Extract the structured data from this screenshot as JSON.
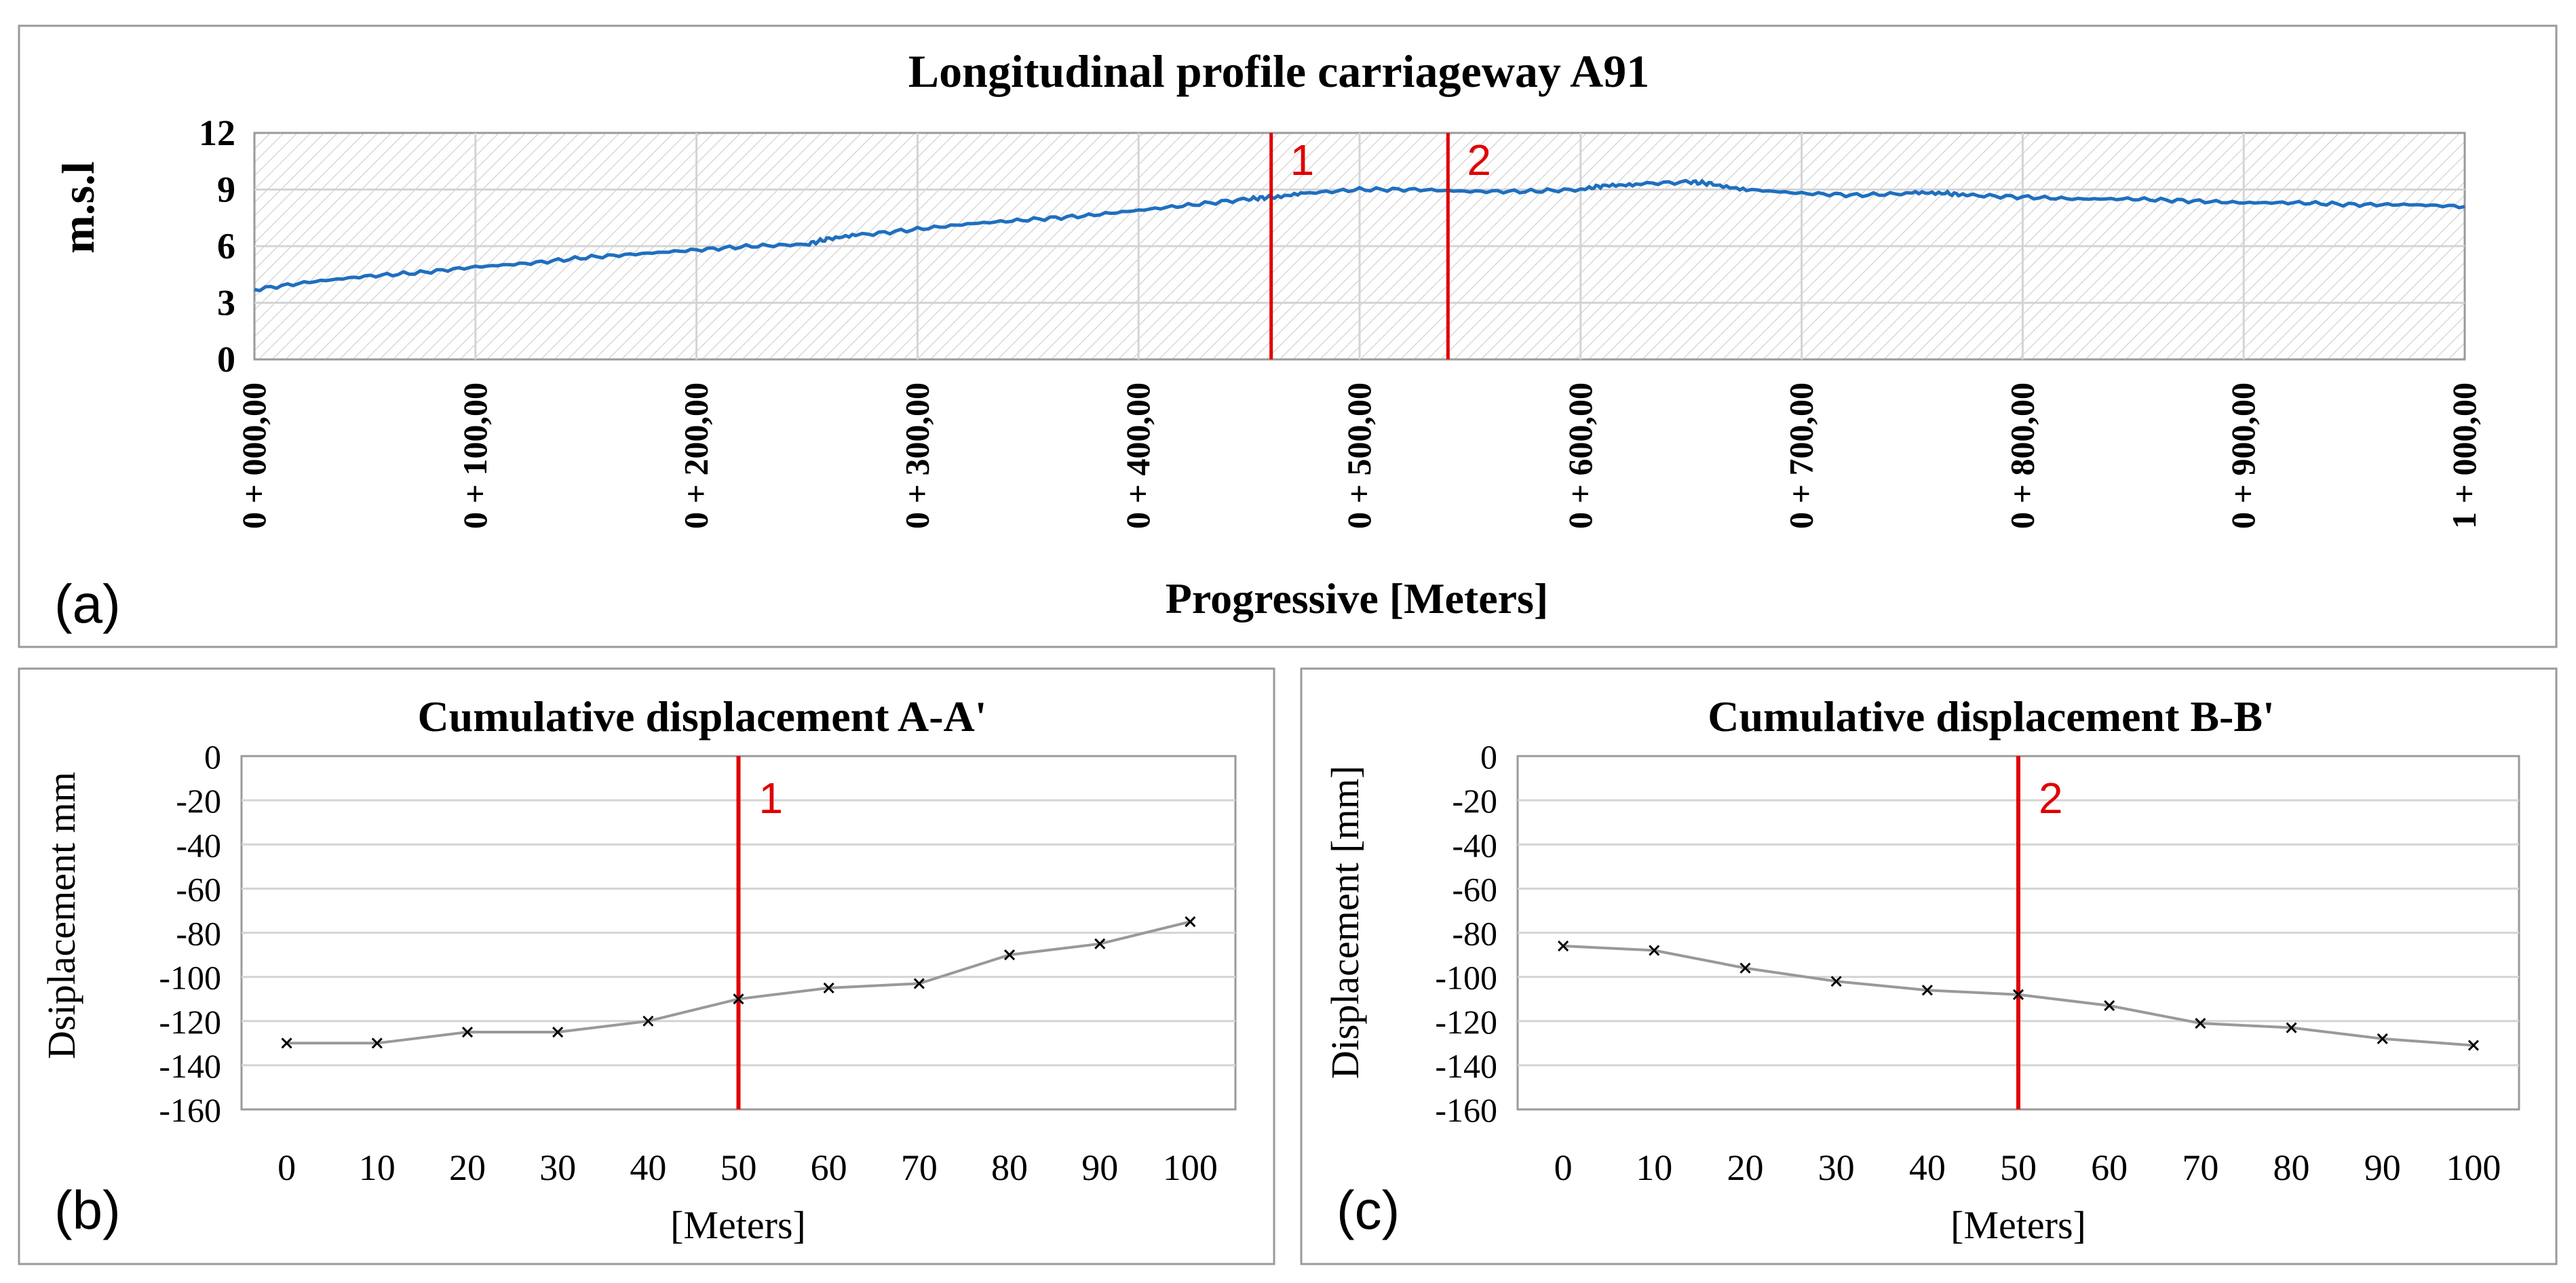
{
  "chart_data": [
    {
      "id": "a",
      "type": "line",
      "panel_label": "(a)",
      "title": "Longitudinal profile carriageway A91",
      "xlabel": "Progressive [Meters]",
      "ylabel": "m.s.l",
      "xlim": [
        0,
        1000
      ],
      "ylim": [
        0,
        12
      ],
      "yticks": [
        "0",
        "3",
        "6",
        "9",
        "12"
      ],
      "xticks": [
        "0 + 000,00",
        "0 + 100,00",
        "0 + 200,00",
        "0 + 300,00",
        "0 + 400,00",
        "0 + 500,00",
        "0 + 600,00",
        "0 + 700,00",
        "0 + 800,00",
        "0 + 900,00",
        "1 + 000,00"
      ],
      "series": [
        {
          "name": "profile",
          "color": "#1f6fbf",
          "x": [
            0,
            25,
            50,
            75,
            100,
            125,
            150,
            175,
            200,
            225,
            250,
            260,
            275,
            300,
            325,
            350,
            375,
            400,
            425,
            450,
            460,
            475,
            500,
            525,
            550,
            575,
            600,
            610,
            625,
            650,
            660,
            675,
            700,
            725,
            750,
            765,
            775,
            800,
            825,
            850,
            875,
            900,
            925,
            950,
            975,
            1000
          ],
          "y": [
            3.7,
            4.1,
            4.4,
            4.6,
            4.9,
            5.1,
            5.4,
            5.6,
            5.8,
            6.0,
            6.1,
            6.4,
            6.6,
            6.9,
            7.2,
            7.4,
            7.6,
            7.9,
            8.2,
            8.5,
            8.6,
            8.8,
            9.0,
            9.0,
            8.9,
            8.9,
            9.0,
            9.2,
            9.3,
            9.4,
            9.3,
            9.0,
            8.8,
            8.7,
            8.8,
            8.8,
            8.7,
            8.6,
            8.5,
            8.5,
            8.4,
            8.3,
            8.3,
            8.2,
            8.2,
            8.1
          ]
        }
      ],
      "markers": [
        {
          "x": 460,
          "label": "1",
          "color": "#e00000"
        },
        {
          "x": 540,
          "label": "2",
          "color": "#e00000"
        }
      ]
    },
    {
      "id": "b",
      "type": "line",
      "panel_label": "(b)",
      "title": "Cumulative displacement A-A'",
      "xlabel": "[Meters]",
      "ylabel": "Dsiplacement mm",
      "ylim": [
        -160,
        0
      ],
      "yticks": [
        "0",
        "-20",
        "-40",
        "-60",
        "-80",
        "-100",
        "-120",
        "-140",
        "-160"
      ],
      "categories": [
        "0",
        "10",
        "20",
        "30",
        "40",
        "50",
        "60",
        "70",
        "80",
        "90",
        "100"
      ],
      "series": [
        {
          "name": "A-A'",
          "color": "#999999",
          "values": [
            -130,
            -130,
            -125,
            -125,
            -120,
            -110,
            -105,
            -103,
            -90,
            -85,
            -75
          ]
        }
      ],
      "markers": [
        {
          "category_index": 5,
          "label": "1",
          "color": "#e00000"
        }
      ]
    },
    {
      "id": "c",
      "type": "line",
      "panel_label": "(c)",
      "title": "Cumulative displacement B-B'",
      "xlabel": "[Meters]",
      "ylabel": "Displacement [mm]",
      "ylim": [
        -160,
        0
      ],
      "yticks": [
        "0",
        "-20",
        "-40",
        "-60",
        "-80",
        "-100",
        "-120",
        "-140",
        "-160"
      ],
      "categories": [
        "0",
        "10",
        "20",
        "30",
        "40",
        "50",
        "60",
        "70",
        "80",
        "90",
        "100"
      ],
      "series": [
        {
          "name": "B-B'",
          "color": "#999999",
          "values": [
            -86,
            -88,
            -96,
            -102,
            -106,
            -108,
            -113,
            -121,
            -123,
            -128,
            -131
          ]
        }
      ],
      "markers": [
        {
          "category_index": 5,
          "label": "2",
          "color": "#e00000"
        }
      ]
    }
  ]
}
